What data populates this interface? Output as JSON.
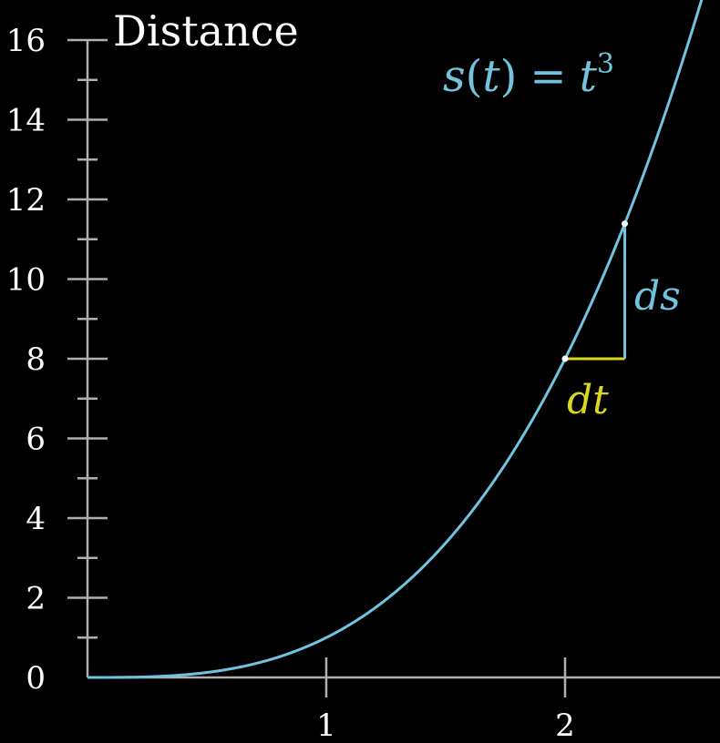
{
  "chart_data": {
    "type": "line",
    "title": "Distance",
    "xlim": [
      0,
      2.65
    ],
    "ylim": [
      0,
      16
    ],
    "x_ticks": [
      1,
      2
    ],
    "y_ticks": [
      0,
      2,
      4,
      6,
      8,
      10,
      12,
      14,
      16
    ],
    "y_minor_step": 1,
    "x_minor_step": 0.5,
    "series": [
      {
        "name": "s(t) = t³",
        "function": "t^3",
        "t_range": [
          0,
          2.65
        ]
      }
    ],
    "annotations": {
      "dt": {
        "label": "dt",
        "t_start": 2.0,
        "t_end": 2.25
      },
      "ds": {
        "label": "ds",
        "s_start": 8.0,
        "s_end": 11.39
      }
    },
    "curve_label": {
      "s": "s",
      "open": "(",
      "t": "t",
      "close": ")",
      "eq": "=",
      "rhs": "t",
      "exp": "3"
    },
    "colors": {
      "curve": "#73c2e0",
      "dt": "#d8d81e",
      "ds": "#73c2e0",
      "axis": "#b0b0b0",
      "text": "#ffffff",
      "background": "#000000"
    }
  }
}
